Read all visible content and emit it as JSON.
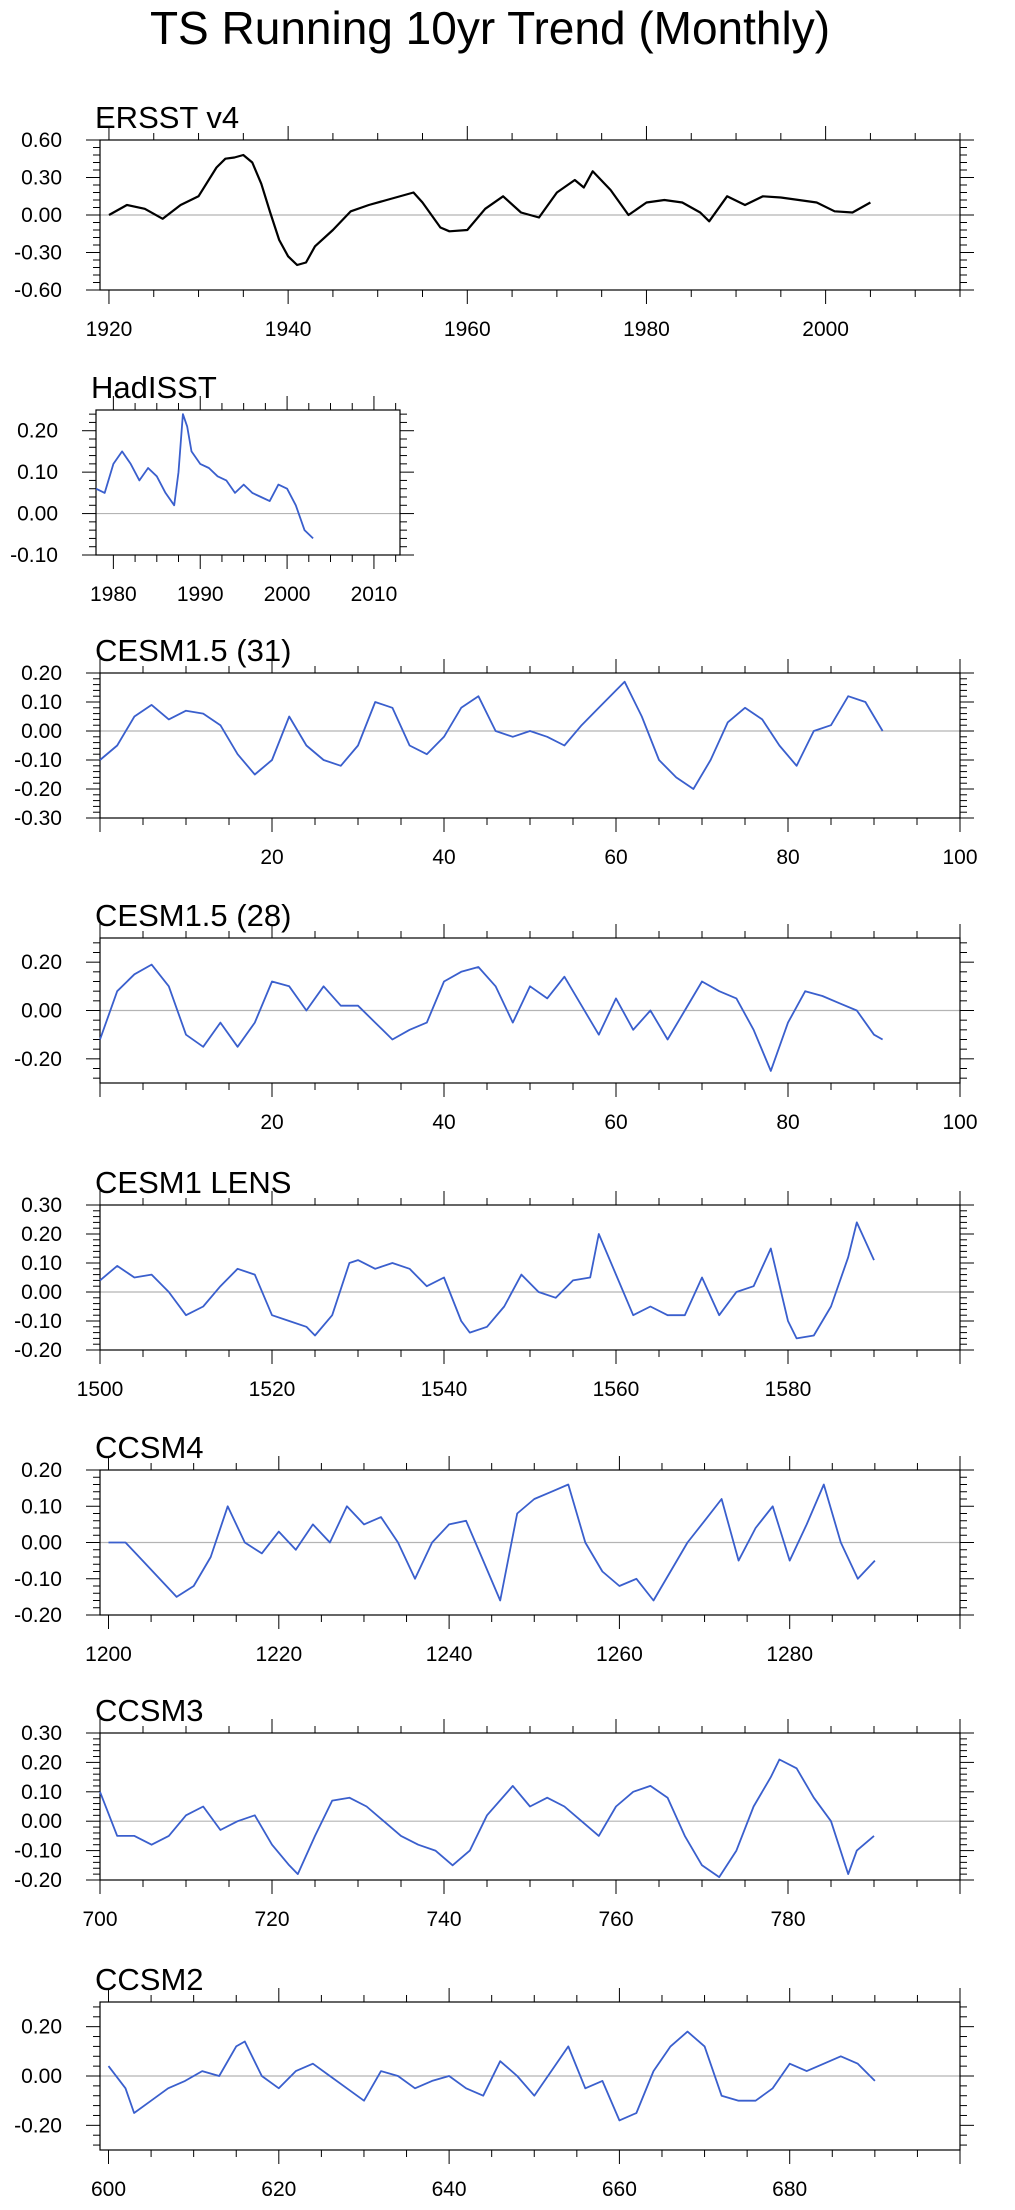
{
  "title": "TS Running 10yr Trend (Monthly)",
  "colors": {
    "obs": "#000000",
    "model": "#3a5fcd",
    "zero": "#b4b4b4",
    "axis": "#000000"
  },
  "chart_data": [
    {
      "type": "line",
      "title": "ERSST v4",
      "color": "#000000",
      "xlim": [
        1919,
        2015
      ],
      "ylim": [
        -0.6,
        0.6
      ],
      "xticks": [
        1920,
        1940,
        1960,
        1980,
        2000
      ],
      "yticks": [
        -0.6,
        -0.3,
        0.0,
        0.3,
        0.6
      ],
      "ytick_labels": [
        "-0.60",
        "-0.30",
        "0.00",
        "0.30",
        "0.60"
      ],
      "x": [
        1920,
        1922,
        1924,
        1926,
        1928,
        1930,
        1932,
        1933,
        1934,
        1935,
        1936,
        1937,
        1938,
        1939,
        1940,
        1941,
        1942,
        1943,
        1945,
        1947,
        1949,
        1951,
        1953,
        1954,
        1955,
        1957,
        1958,
        1960,
        1962,
        1964,
        1966,
        1968,
        1970,
        1972,
        1973,
        1974,
        1976,
        1978,
        1980,
        1982,
        1984,
        1986,
        1987,
        1989,
        1991,
        1993,
        1995,
        1997,
        1999,
        2001,
        2003,
        2005
      ],
      "values": [
        0.0,
        0.08,
        0.05,
        -0.03,
        0.08,
        0.15,
        0.38,
        0.45,
        0.46,
        0.48,
        0.42,
        0.25,
        0.02,
        -0.2,
        -0.33,
        -0.4,
        -0.38,
        -0.25,
        -0.12,
        0.03,
        0.08,
        0.12,
        0.16,
        0.18,
        0.1,
        -0.1,
        -0.13,
        -0.12,
        0.05,
        0.15,
        0.02,
        -0.02,
        0.18,
        0.28,
        0.22,
        0.35,
        0.2,
        0.0,
        0.1,
        0.12,
        0.1,
        0.02,
        -0.05,
        0.15,
        0.08,
        0.15,
        0.14,
        0.12,
        0.1,
        0.03,
        0.02,
        0.1
      ]
    },
    {
      "type": "line",
      "title": "HadISST",
      "color": "#3a5fcd",
      "xlim": [
        1978,
        2013
      ],
      "ylim": [
        -0.1,
        0.25
      ],
      "xticks": [
        1980,
        1990,
        2000,
        2010
      ],
      "yticks": [
        -0.1,
        0.0,
        0.1,
        0.2
      ],
      "ytick_labels": [
        "-0.10",
        "0.00",
        "0.10",
        "0.20"
      ],
      "x": [
        1978,
        1979,
        1980,
        1981,
        1982,
        1983,
        1984,
        1985,
        1986,
        1987,
        1987.5,
        1988,
        1988.5,
        1989,
        1990,
        1991,
        1992,
        1993,
        1994,
        1995,
        1996,
        1997,
        1998,
        1999,
        2000,
        2001,
        2002,
        2003
      ],
      "values": [
        0.06,
        0.05,
        0.12,
        0.15,
        0.12,
        0.08,
        0.11,
        0.09,
        0.05,
        0.02,
        0.1,
        0.24,
        0.21,
        0.15,
        0.12,
        0.11,
        0.09,
        0.08,
        0.05,
        0.07,
        0.05,
        0.04,
        0.03,
        0.07,
        0.06,
        0.02,
        -0.04,
        -0.06
      ]
    },
    {
      "type": "line",
      "title": "CESM1.5 (31)",
      "color": "#3a5fcd",
      "xlim": [
        0,
        100
      ],
      "ylim": [
        -0.3,
        0.2
      ],
      "xticks": [
        20,
        40,
        60,
        80,
        100
      ],
      "yticks": [
        -0.3,
        -0.2,
        -0.1,
        0.0,
        0.1,
        0.2
      ],
      "ytick_labels": [
        "-0.30",
        "-0.20",
        "-0.10",
        "0.00",
        "0.10",
        "0.20"
      ],
      "x": [
        0,
        2,
        4,
        6,
        8,
        10,
        12,
        14,
        16,
        18,
        20,
        22,
        24,
        26,
        28,
        30,
        32,
        34,
        36,
        38,
        40,
        42,
        44,
        46,
        48,
        50,
        52,
        54,
        56,
        58,
        60,
        61,
        63,
        65,
        67,
        69,
        71,
        73,
        75,
        77,
        79,
        81,
        83,
        85,
        87,
        89,
        91
      ],
      "values": [
        -0.1,
        -0.05,
        0.05,
        0.09,
        0.04,
        0.07,
        0.06,
        0.02,
        -0.08,
        -0.15,
        -0.1,
        0.05,
        -0.05,
        -0.1,
        -0.12,
        -0.05,
        0.1,
        0.08,
        -0.05,
        -0.08,
        -0.02,
        0.08,
        0.12,
        0.0,
        -0.02,
        0.0,
        -0.02,
        -0.05,
        0.02,
        0.08,
        0.14,
        0.17,
        0.05,
        -0.1,
        -0.16,
        -0.2,
        -0.1,
        0.03,
        0.08,
        0.04,
        -0.05,
        -0.12,
        0.0,
        0.02,
        0.12,
        0.1,
        0.0
      ]
    },
    {
      "type": "line",
      "title": "CESM1.5 (28)",
      "color": "#3a5fcd",
      "xlim": [
        0,
        100
      ],
      "ylim": [
        -0.3,
        0.3
      ],
      "xticks": [
        20,
        40,
        60,
        80,
        100
      ],
      "yticks": [
        -0.2,
        0.0,
        0.2
      ],
      "ytick_labels": [
        "-0.20",
        "0.00",
        "0.20"
      ],
      "x": [
        0,
        2,
        4,
        6,
        8,
        10,
        12,
        14,
        16,
        18,
        20,
        22,
        24,
        26,
        28,
        30,
        32,
        34,
        36,
        38,
        40,
        42,
        44,
        46,
        48,
        50,
        52,
        54,
        56,
        58,
        60,
        62,
        64,
        66,
        68,
        70,
        72,
        74,
        76,
        78,
        80,
        82,
        84,
        86,
        88,
        90,
        91
      ],
      "values": [
        -0.12,
        0.08,
        0.15,
        0.19,
        0.1,
        -0.1,
        -0.15,
        -0.05,
        -0.15,
        -0.05,
        0.12,
        0.1,
        0.0,
        0.1,
        0.02,
        0.02,
        -0.05,
        -0.12,
        -0.08,
        -0.05,
        0.12,
        0.16,
        0.18,
        0.1,
        -0.05,
        0.1,
        0.05,
        0.14,
        0.02,
        -0.1,
        0.05,
        -0.08,
        0.0,
        -0.12,
        0.0,
        0.12,
        0.08,
        0.05,
        -0.08,
        -0.25,
        -0.05,
        0.08,
        0.06,
        0.03,
        0.0,
        -0.1,
        -0.12
      ]
    },
    {
      "type": "line",
      "title": "CESM1 LENS",
      "color": "#3a5fcd",
      "xlim": [
        1500,
        1600
      ],
      "ylim": [
        -0.2,
        0.3
      ],
      "xticks": [
        1500,
        1520,
        1540,
        1560,
        1580
      ],
      "yticks": [
        -0.2,
        -0.1,
        0.0,
        0.1,
        0.2,
        0.3
      ],
      "ytick_labels": [
        "-0.20",
        "-0.10",
        "0.00",
        "0.10",
        "0.20",
        "0.30"
      ],
      "x": [
        1500,
        1502,
        1504,
        1506,
        1508,
        1510,
        1512,
        1514,
        1516,
        1518,
        1520,
        1522,
        1524,
        1525,
        1527,
        1529,
        1530,
        1532,
        1534,
        1536,
        1538,
        1540,
        1542,
        1543,
        1545,
        1547,
        1549,
        1551,
        1553,
        1555,
        1557,
        1558,
        1560,
        1562,
        1564,
        1566,
        1568,
        1570,
        1572,
        1574,
        1576,
        1578,
        1580,
        1581,
        1583,
        1585,
        1587,
        1588,
        1590
      ],
      "values": [
        0.04,
        0.09,
        0.05,
        0.06,
        0.0,
        -0.08,
        -0.05,
        0.02,
        0.08,
        0.06,
        -0.08,
        -0.1,
        -0.12,
        -0.15,
        -0.08,
        0.1,
        0.11,
        0.08,
        0.1,
        0.08,
        0.02,
        0.05,
        -0.1,
        -0.14,
        -0.12,
        -0.05,
        0.06,
        0.0,
        -0.02,
        0.04,
        0.05,
        0.2,
        0.06,
        -0.08,
        -0.05,
        -0.08,
        -0.08,
        0.05,
        -0.08,
        0.0,
        0.02,
        0.15,
        -0.1,
        -0.16,
        -0.15,
        -0.05,
        0.12,
        0.24,
        0.11
      ]
    },
    {
      "type": "line",
      "title": "CCSM4",
      "color": "#3a5fcd",
      "xlim": [
        1199,
        1300
      ],
      "ylim": [
        -0.2,
        0.2
      ],
      "xticks": [
        1200,
        1220,
        1240,
        1260,
        1280
      ],
      "yticks": [
        -0.2,
        -0.1,
        0.0,
        0.1,
        0.2
      ],
      "ytick_labels": [
        "-0.20",
        "-0.10",
        "0.00",
        "0.10",
        "0.20"
      ],
      "x": [
        1200,
        1202,
        1204,
        1206,
        1208,
        1210,
        1212,
        1214,
        1216,
        1218,
        1220,
        1222,
        1224,
        1226,
        1228,
        1230,
        1232,
        1234,
        1236,
        1238,
        1240,
        1242,
        1244,
        1246,
        1248,
        1250,
        1252,
        1254,
        1256,
        1258,
        1260,
        1262,
        1264,
        1266,
        1268,
        1270,
        1272,
        1274,
        1276,
        1278,
        1280,
        1282,
        1284,
        1286,
        1288,
        1290
      ],
      "values": [
        0.0,
        0.0,
        -0.05,
        -0.1,
        -0.15,
        -0.12,
        -0.04,
        0.1,
        0.0,
        -0.03,
        0.03,
        -0.02,
        0.05,
        0.0,
        0.1,
        0.05,
        0.07,
        0.0,
        -0.1,
        0.0,
        0.05,
        0.06,
        -0.05,
        -0.16,
        0.08,
        0.12,
        0.14,
        0.16,
        0.0,
        -0.08,
        -0.12,
        -0.1,
        -0.16,
        -0.08,
        0.0,
        0.06,
        0.12,
        -0.05,
        0.04,
        0.1,
        -0.05,
        0.05,
        0.16,
        0.0,
        -0.1,
        -0.05
      ]
    },
    {
      "type": "line",
      "title": "CCSM3",
      "color": "#3a5fcd",
      "xlim": [
        700,
        800
      ],
      "ylim": [
        -0.2,
        0.3
      ],
      "xticks": [
        700,
        720,
        740,
        760,
        780
      ],
      "yticks": [
        -0.2,
        -0.1,
        0.0,
        0.1,
        0.2,
        0.3
      ],
      "ytick_labels": [
        "-0.20",
        "-0.10",
        "0.00",
        "0.10",
        "0.20",
        "0.30"
      ],
      "x": [
        700,
        702,
        704,
        706,
        708,
        710,
        712,
        714,
        716,
        718,
        720,
        722,
        723,
        725,
        727,
        729,
        731,
        733,
        735,
        737,
        739,
        741,
        743,
        745,
        748,
        750,
        752,
        754,
        756,
        758,
        760,
        762,
        764,
        766,
        768,
        770,
        772,
        774,
        776,
        778,
        779,
        781,
        783,
        785,
        787,
        788,
        790
      ],
      "values": [
        0.1,
        -0.05,
        -0.05,
        -0.08,
        -0.05,
        0.02,
        0.05,
        -0.03,
        0.0,
        0.02,
        -0.08,
        -0.15,
        -0.18,
        -0.05,
        0.07,
        0.08,
        0.05,
        0.0,
        -0.05,
        -0.08,
        -0.1,
        -0.15,
        -0.1,
        0.02,
        0.12,
        0.05,
        0.08,
        0.05,
        0.0,
        -0.05,
        0.05,
        0.1,
        0.12,
        0.08,
        -0.05,
        -0.15,
        -0.19,
        -0.1,
        0.05,
        0.15,
        0.21,
        0.18,
        0.08,
        0.0,
        -0.18,
        -0.1,
        -0.05
      ]
    },
    {
      "type": "line",
      "title": "CCSM2",
      "color": "#3a5fcd",
      "xlim": [
        599,
        700
      ],
      "ylim": [
        -0.3,
        0.3
      ],
      "xticks": [
        600,
        620,
        640,
        660,
        680
      ],
      "yticks": [
        -0.2,
        0.0,
        0.2
      ],
      "ytick_labels": [
        "-0.20",
        "0.00",
        "0.20"
      ],
      "x": [
        600,
        602,
        603,
        605,
        607,
        609,
        611,
        613,
        615,
        616,
        618,
        620,
        622,
        624,
        626,
        628,
        630,
        632,
        634,
        636,
        638,
        640,
        642,
        644,
        646,
        648,
        650,
        652,
        654,
        656,
        658,
        660,
        662,
        664,
        666,
        668,
        670,
        672,
        674,
        676,
        678,
        680,
        682,
        684,
        686,
        688,
        690
      ],
      "values": [
        0.04,
        -0.05,
        -0.15,
        -0.1,
        -0.05,
        -0.02,
        0.02,
        0.0,
        0.12,
        0.14,
        0.0,
        -0.05,
        0.02,
        0.05,
        0.0,
        -0.05,
        -0.1,
        0.02,
        0.0,
        -0.05,
        -0.02,
        0.0,
        -0.05,
        -0.08,
        0.06,
        0.0,
        -0.08,
        0.02,
        0.12,
        -0.05,
        -0.02,
        -0.18,
        -0.15,
        0.02,
        0.12,
        0.18,
        0.12,
        -0.08,
        -0.1,
        -0.1,
        -0.05,
        0.05,
        0.02,
        0.05,
        0.08,
        0.05,
        -0.02
      ]
    }
  ]
}
